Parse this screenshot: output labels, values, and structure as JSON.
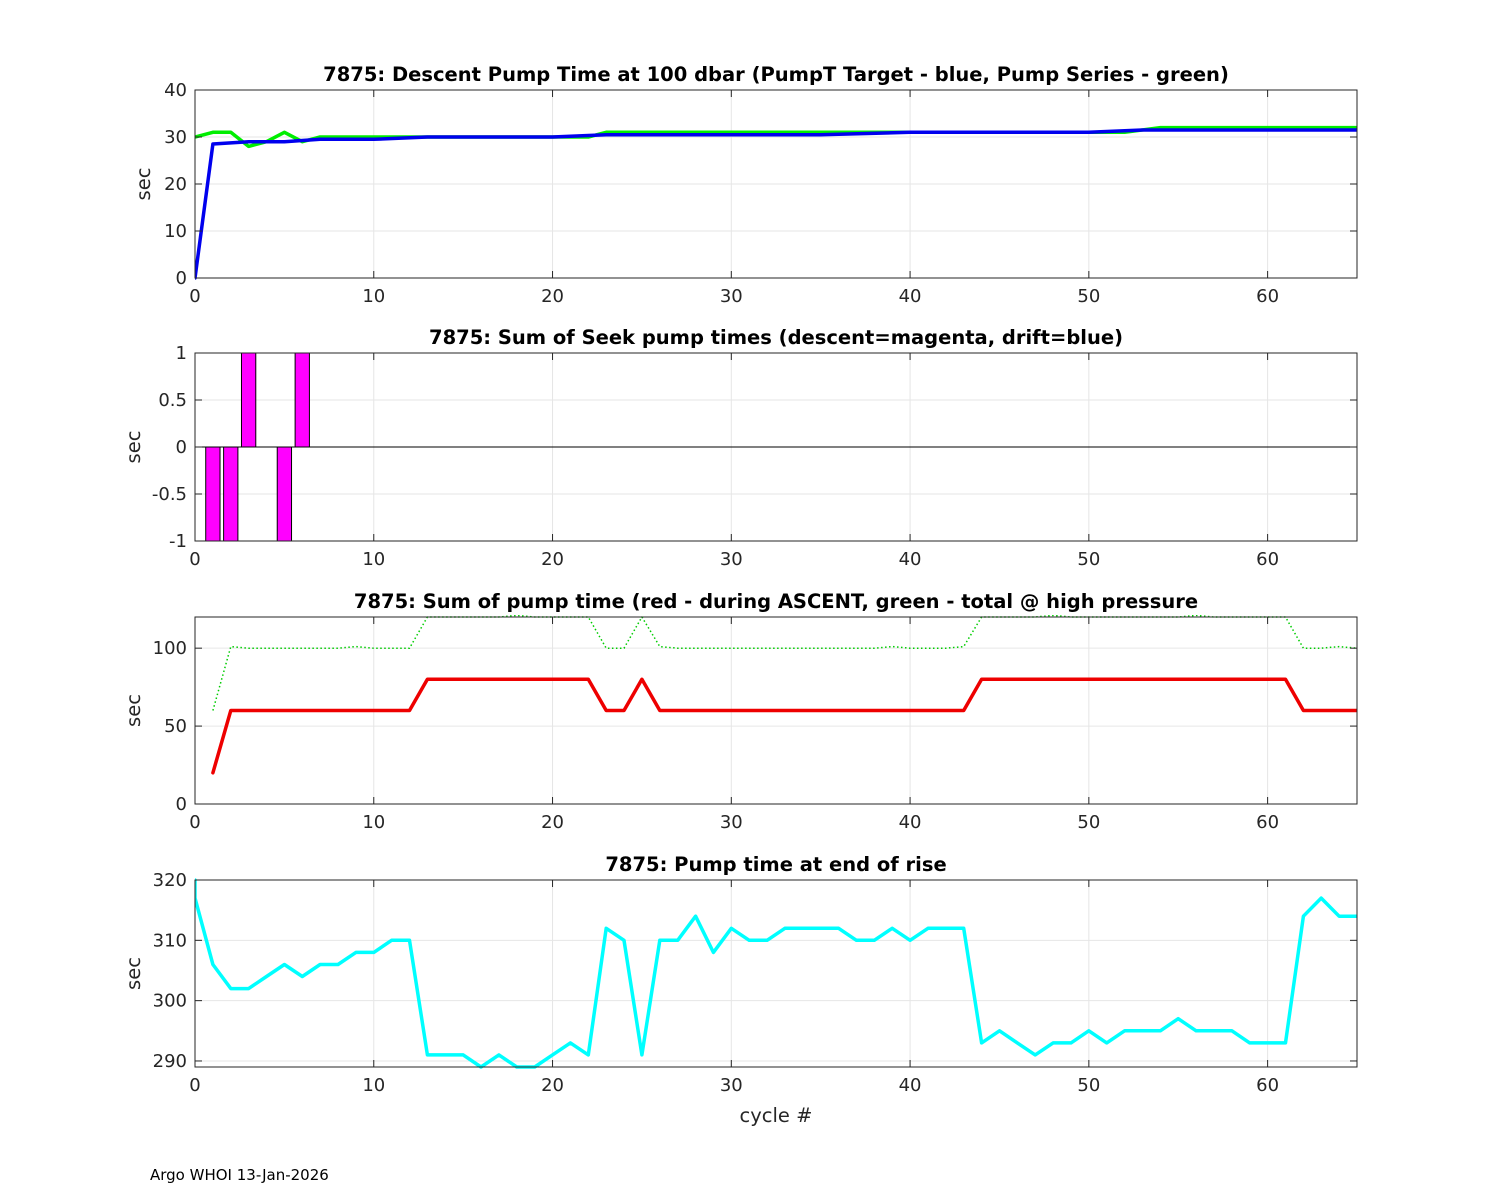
{
  "footer": "Argo WHOI 13-Jan-2026",
  "chart_data": [
    {
      "type": "line",
      "title": "7875: Descent Pump Time at 100 dbar (PumpT Target - blue, Pump Series - green)",
      "xlabel": "",
      "ylabel": "sec",
      "xlim": [
        0,
        65
      ],
      "ylim": [
        0,
        40
      ],
      "xticks": [
        0,
        10,
        20,
        30,
        40,
        50,
        60
      ],
      "yticks": [
        0,
        10,
        20,
        30,
        40
      ],
      "grid": true,
      "series": [
        {
          "color": "#00ee00",
          "width": 3.5,
          "style": "solid",
          "x": [
            0,
            1,
            2,
            3,
            4,
            5,
            6,
            7,
            12,
            22,
            23,
            35,
            40,
            45,
            52,
            54,
            65
          ],
          "y": [
            30,
            31,
            31,
            28,
            29,
            31,
            29,
            30,
            30,
            30,
            31,
            31,
            31,
            31,
            31,
            32,
            32
          ]
        },
        {
          "color": "#0000ee",
          "width": 3.5,
          "style": "solid",
          "x": [
            0,
            1,
            3,
            5,
            7,
            10,
            13,
            20,
            23,
            30,
            35,
            40,
            41,
            45,
            50,
            53,
            55,
            60,
            65
          ],
          "y": [
            0,
            28.5,
            29,
            29,
            29.5,
            29.5,
            30,
            30,
            30.5,
            30.5,
            30.5,
            31,
            31,
            31,
            31,
            31.5,
            31.5,
            31.5,
            31.5
          ]
        }
      ]
    },
    {
      "type": "bar",
      "title": "7875: Sum of Seek pump times (descent=magenta, drift=blue)",
      "xlabel": "",
      "ylabel": "sec",
      "xlim": [
        0,
        65
      ],
      "ylim": [
        -1,
        1
      ],
      "xticks": [
        0,
        10,
        20,
        30,
        40,
        50,
        60
      ],
      "yticks": [
        -1,
        -0.5,
        0,
        0.5,
        1
      ],
      "grid": true,
      "bars": [
        {
          "x": 1,
          "value": -1,
          "color": "#ff00ff"
        },
        {
          "x": 2,
          "value": -1,
          "color": "#ff00ff"
        },
        {
          "x": 3,
          "value": 1,
          "color": "#ff00ff"
        },
        {
          "x": 5,
          "value": -1,
          "color": "#ff00ff"
        },
        {
          "x": 6,
          "value": 1,
          "color": "#ff00ff"
        }
      ]
    },
    {
      "type": "line",
      "title": "7875: Sum of pump time (red - during ASCENT, green - total @ high pressure",
      "xlabel": "",
      "ylabel": "sec",
      "xlim": [
        0,
        65
      ],
      "ylim": [
        0,
        120
      ],
      "xticks": [
        0,
        10,
        20,
        30,
        40,
        50,
        60
      ],
      "yticks": [
        0,
        50,
        100
      ],
      "grid": true,
      "series": [
        {
          "color": "#00cc00",
          "width": 1.5,
          "style": "dotted",
          "x": [
            1,
            2,
            3,
            8,
            9,
            10,
            12,
            13,
            17,
            18,
            19,
            22,
            23,
            24,
            25,
            26,
            27,
            38,
            39,
            40,
            42,
            43,
            44,
            47,
            48,
            49,
            55,
            56,
            57,
            61,
            62,
            63,
            64,
            65
          ],
          "y": [
            60,
            101,
            100,
            100,
            101,
            100,
            100,
            120,
            120,
            121,
            120,
            120,
            100,
            100,
            120,
            101,
            100,
            100,
            101,
            100,
            100,
            101,
            120,
            120,
            121,
            120,
            120,
            121,
            120,
            120,
            100,
            100,
            101,
            100
          ]
        },
        {
          "color": "#ee0000",
          "width": 3.5,
          "style": "solid",
          "x": [
            1,
            2,
            12,
            13,
            22,
            23,
            24,
            25,
            26,
            43,
            44,
            61,
            62,
            65
          ],
          "y": [
            20,
            60,
            60,
            80,
            80,
            60,
            60,
            80,
            60,
            60,
            80,
            80,
            60,
            60
          ]
        }
      ]
    },
    {
      "type": "line",
      "title": "7875: Pump time at end of rise",
      "xlabel": "cycle #",
      "ylabel": "sec",
      "xlim": [
        0,
        65
      ],
      "ylim": [
        289,
        320
      ],
      "xticks": [
        0,
        10,
        20,
        30,
        40,
        50,
        60
      ],
      "yticks": [
        290,
        300,
        310,
        320
      ],
      "grid": true,
      "series": [
        {
          "color": "#00ffff",
          "width": 3.5,
          "style": "solid",
          "x": [
            0,
            0,
            1,
            2,
            3,
            4,
            5,
            6,
            7,
            8,
            9,
            10,
            11,
            12,
            13,
            14,
            15,
            16,
            17,
            18,
            19,
            20,
            21,
            22,
            23,
            24,
            25,
            26,
            27,
            28,
            29,
            30,
            31,
            32,
            33,
            34,
            35,
            36,
            37,
            38,
            39,
            40,
            41,
            42,
            43,
            44,
            45,
            46,
            47,
            48,
            49,
            50,
            51,
            52,
            53,
            54,
            55,
            56,
            57,
            58,
            59,
            60,
            61,
            62,
            63,
            64,
            65
          ],
          "y": [
            320,
            317,
            306,
            302,
            302,
            304,
            306,
            304,
            306,
            306,
            308,
            308,
            310,
            310,
            291,
            291,
            291,
            289,
            291,
            289,
            289,
            291,
            293,
            291,
            312,
            310,
            291,
            310,
            310,
            314,
            308,
            312,
            310,
            310,
            312,
            312,
            312,
            312,
            310,
            310,
            312,
            310,
            312,
            312,
            312,
            293,
            295,
            293,
            291,
            293,
            293,
            295,
            293,
            295,
            295,
            295,
            297,
            295,
            295,
            295,
            293,
            293,
            293,
            314,
            317,
            314,
            314
          ]
        }
      ]
    }
  ]
}
